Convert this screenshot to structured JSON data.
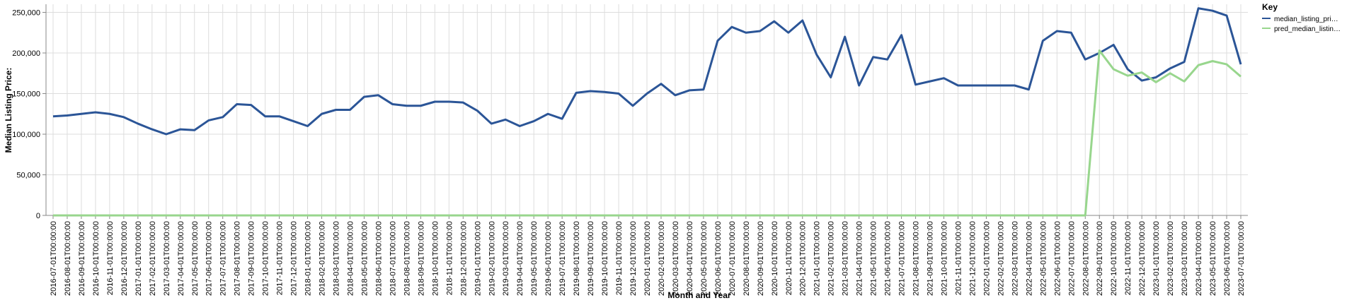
{
  "chart_data": {
    "type": "line",
    "x_label": "Month and Year",
    "y_label": "Median Listing Price:",
    "legend_title": "Key",
    "legend_position": "right",
    "grid": true,
    "categories": [
      "2016-07-01T00:00:00",
      "2016-08-01T00:00:00",
      "2016-09-01T00:00:00",
      "2016-10-01T00:00:00",
      "2016-11-01T00:00:00",
      "2016-12-01T00:00:00",
      "2017-01-01T00:00:00",
      "2017-02-01T00:00:00",
      "2017-03-01T00:00:00",
      "2017-04-01T00:00:00",
      "2017-05-01T00:00:00",
      "2017-06-01T00:00:00",
      "2017-07-01T00:00:00",
      "2017-08-01T00:00:00",
      "2017-09-01T00:00:00",
      "2017-10-01T00:00:00",
      "2017-11-01T00:00:00",
      "2017-12-01T00:00:00",
      "2018-01-01T00:00:00",
      "2018-02-01T00:00:00",
      "2018-03-01T00:00:00",
      "2018-04-01T00:00:00",
      "2018-05-01T00:00:00",
      "2018-06-01T00:00:00",
      "2018-07-01T00:00:00",
      "2018-08-01T00:00:00",
      "2018-09-01T00:00:00",
      "2018-10-01T00:00:00",
      "2018-11-01T00:00:00",
      "2018-12-01T00:00:00",
      "2019-01-01T00:00:00",
      "2019-02-01T00:00:00",
      "2019-03-01T00:00:00",
      "2019-04-01T00:00:00",
      "2019-05-01T00:00:00",
      "2019-06-01T00:00:00",
      "2019-07-01T00:00:00",
      "2019-08-01T00:00:00",
      "2019-09-01T00:00:00",
      "2019-10-01T00:00:00",
      "2019-11-01T00:00:00",
      "2019-12-01T00:00:00",
      "2020-01-01T00:00:00",
      "2020-02-01T00:00:00",
      "2020-03-01T00:00:00",
      "2020-04-01T00:00:00",
      "2020-05-01T00:00:00",
      "2020-06-01T00:00:00",
      "2020-07-01T00:00:00",
      "2020-08-01T00:00:00",
      "2020-09-01T00:00:00",
      "2020-10-01T00:00:00",
      "2020-11-01T00:00:00",
      "2020-12-01T00:00:00",
      "2021-01-01T00:00:00",
      "2021-02-01T00:00:00",
      "2021-03-01T00:00:00",
      "2021-04-01T00:00:00",
      "2021-05-01T00:00:00",
      "2021-06-01T00:00:00",
      "2021-07-01T00:00:00",
      "2021-08-01T00:00:00",
      "2021-09-01T00:00:00",
      "2021-10-01T00:00:00",
      "2021-11-01T00:00:00",
      "2021-12-01T00:00:00",
      "2022-01-01T00:00:00",
      "2022-02-01T00:00:00",
      "2022-03-01T00:00:00",
      "2022-04-01T00:00:00",
      "2022-05-01T00:00:00",
      "2022-06-01T00:00:00",
      "2022-07-01T00:00:00",
      "2022-08-01T00:00:00",
      "2022-09-01T00:00:00",
      "2022-10-01T00:00:00",
      "2022-11-01T00:00:00",
      "2022-12-01T00:00:00",
      "2023-01-01T00:00:00",
      "2023-02-01T00:00:00",
      "2023-03-01T00:00:00",
      "2023-04-01T00:00:00",
      "2023-05-01T00:00:00",
      "2023-06-01T00:00:00",
      "2023-07-01T00:00:00"
    ],
    "series": [
      {
        "name": "median_listing_pri…",
        "color": "#2b5597",
        "values": [
          122000,
          123000,
          125000,
          127000,
          125000,
          121000,
          113000,
          106000,
          100000,
          106000,
          105000,
          117000,
          121000,
          137000,
          136000,
          122000,
          122000,
          116000,
          110000,
          125000,
          130000,
          130000,
          146000,
          148000,
          137000,
          135000,
          135000,
          140000,
          140000,
          139000,
          129000,
          113000,
          118000,
          110000,
          116000,
          125000,
          119000,
          151000,
          153000,
          152000,
          150000,
          135000,
          150000,
          162000,
          148000,
          154000,
          155000,
          215000,
          232000,
          225000,
          227000,
          239000,
          225000,
          240000,
          198000,
          170000,
          220000,
          160000,
          195000,
          192000,
          222000,
          161000,
          165000,
          169000,
          160000,
          160000,
          160000,
          160000,
          160000,
          155000,
          215000,
          227000,
          225000,
          192000,
          200000,
          210000,
          180000,
          166000,
          170000,
          181000,
          189000,
          255000,
          252000,
          246000,
          186000
        ]
      },
      {
        "name": "pred_median_listin…",
        "color": "#98d68d",
        "values": [
          0,
          0,
          0,
          0,
          0,
          0,
          0,
          0,
          0,
          0,
          0,
          0,
          0,
          0,
          0,
          0,
          0,
          0,
          0,
          0,
          0,
          0,
          0,
          0,
          0,
          0,
          0,
          0,
          0,
          0,
          0,
          0,
          0,
          0,
          0,
          0,
          0,
          0,
          0,
          0,
          0,
          0,
          0,
          0,
          0,
          0,
          0,
          0,
          0,
          0,
          0,
          0,
          0,
          0,
          0,
          0,
          0,
          0,
          0,
          0,
          0,
          0,
          0,
          0,
          0,
          0,
          0,
          0,
          0,
          0,
          0,
          0,
          0,
          0,
          203000,
          180000,
          172000,
          176000,
          164000,
          175000,
          165000,
          185000,
          190000,
          186000,
          171000
        ]
      }
    ],
    "ylim": [
      0,
      260000
    ],
    "yticks": [
      0,
      {
        "value": 50000,
        "label": "50,000"
      },
      {
        "value": 100000,
        "label": "100,000"
      },
      {
        "value": 150000,
        "label": "150,000"
      },
      {
        "value": 200000,
        "label": "200,000"
      },
      {
        "value": 250000,
        "label": "250,000"
      }
    ]
  }
}
